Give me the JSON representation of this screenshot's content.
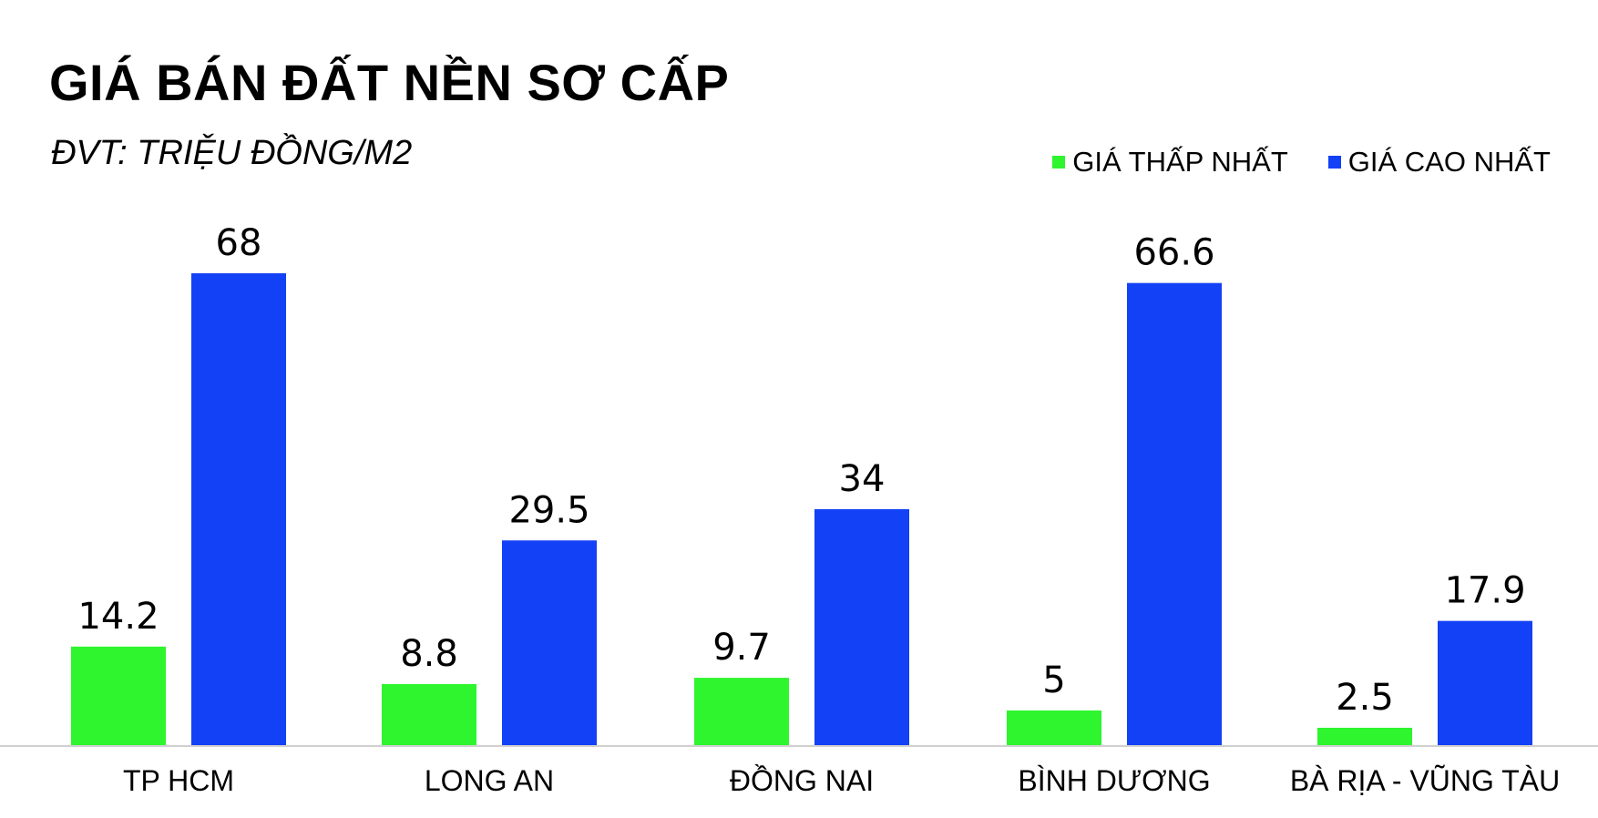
{
  "chart_data": {
    "type": "bar",
    "title": "GIÁ BÁN ĐẤT NỀN SƠ CẤP",
    "subtitle": "ĐVT: TRIỆU ĐỒNG/M2",
    "categories": [
      "TP HCM",
      "LONG AN",
      "ĐỒNG NAI",
      "BÌNH DƯƠNG",
      "BÀ RỊA - VŨNG TÀU"
    ],
    "series": [
      {
        "name": "GIÁ THẤP NHẤT",
        "color": "#2EF52E",
        "values": [
          14.2,
          8.8,
          9.7,
          5,
          2.5
        ]
      },
      {
        "name": "GIÁ CAO NHẤT",
        "color": "#1341F6",
        "values": [
          68,
          29.5,
          34,
          66.6,
          17.9
        ]
      }
    ],
    "ylim": [
      0,
      68
    ],
    "grid": false,
    "legend_position": "top-right",
    "data_labels": true
  }
}
